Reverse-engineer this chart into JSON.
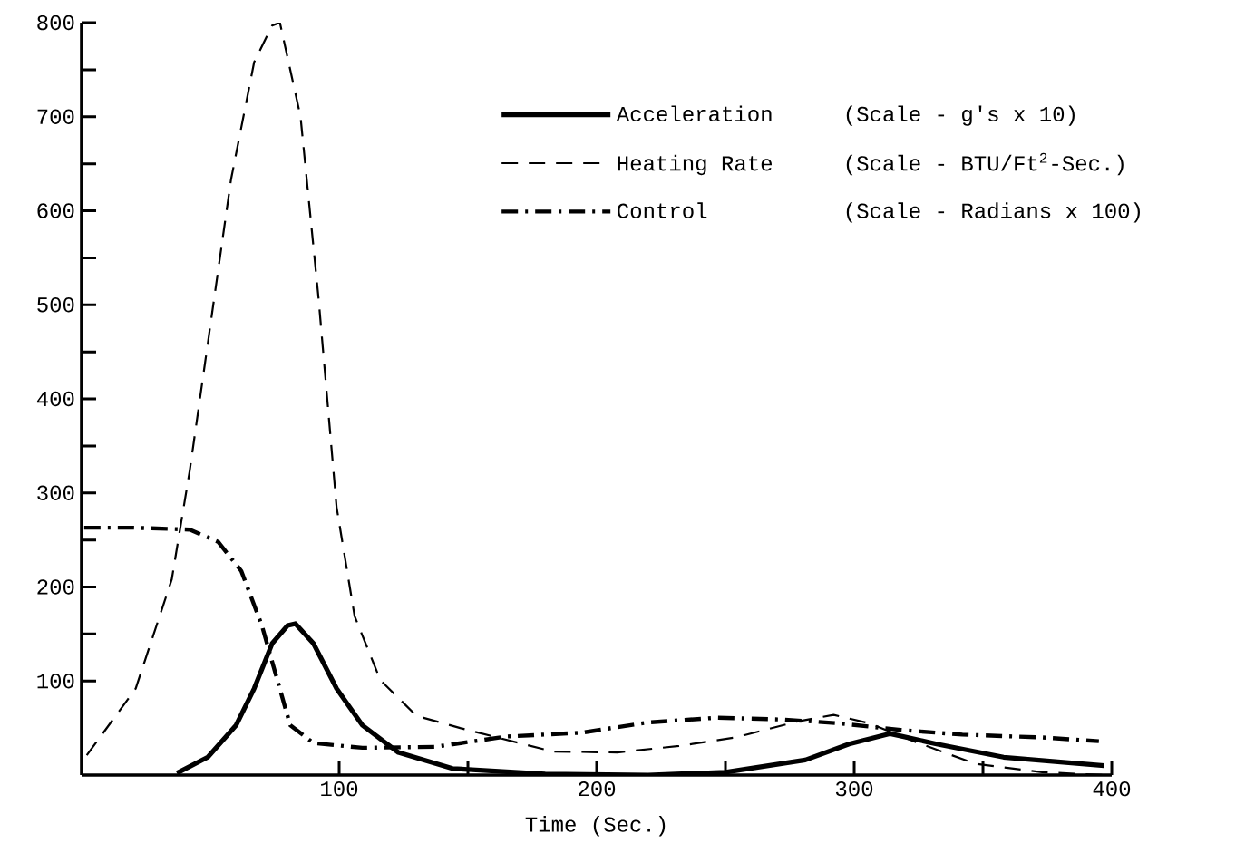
{
  "chart_data": {
    "type": "line",
    "xlabel": "Time (Sec.)",
    "xlim": [
      0,
      400
    ],
    "xticks": [
      100,
      200,
      300,
      400
    ],
    "ylim": [
      0,
      800
    ],
    "yticks": [
      100,
      200,
      300,
      400,
      500,
      600,
      700,
      800
    ],
    "legend": "top right",
    "grid": false,
    "annotations": [
      "(Scale - g's x 10)",
      "(Scale - BTU/Ft$^{2}$-Sec.)",
      "(Scale - Radians x 100)"
    ],
    "series": [
      {
        "name": "Acceleration",
        "color": "#000000",
        "line_style": "solid",
        "x": [
          37,
          49,
          60,
          67,
          74,
          80,
          83,
          90,
          99,
          109,
          123,
          144,
          180,
          220,
          250,
          281,
          298,
          314,
          332,
          358,
          397
        ],
        "values": [
          2,
          19,
          53,
          92,
          140,
          159,
          161,
          140,
          92,
          53,
          24,
          7,
          1,
          0,
          3,
          16,
          33,
          44,
          33,
          19,
          10
        ]
      },
      {
        "name": "Heating Rate",
        "color": "#000000",
        "line_style": "dashed",
        "x": [
          2,
          21,
          35,
          42,
          49,
          58,
          67,
          74,
          77,
          85,
          92,
          99,
          106,
          116,
          130,
          147,
          183,
          208,
          232,
          254,
          278,
          292,
          306,
          324,
          347,
          373,
          397
        ],
        "values": [
          21,
          92,
          208,
          324,
          459,
          633,
          758,
          797,
          800,
          700,
          507,
          285,
          169,
          101,
          63,
          50,
          25,
          24,
          31,
          40,
          57,
          64,
          55,
          35,
          12,
          3,
          0
        ]
      },
      {
        "name": "Control",
        "color": "#000000",
        "line_style": "dashdot",
        "x": [
          1,
          20,
          42,
          53,
          62,
          70,
          76,
          81,
          90,
          109,
          137,
          165,
          194,
          220,
          247,
          273,
          294,
          318,
          342,
          373,
          395
        ],
        "values": [
          263,
          263,
          261,
          248,
          217,
          159,
          101,
          53,
          34,
          29,
          30,
          41,
          45,
          56,
          61,
          59,
          55,
          48,
          43,
          40,
          36
        ]
      }
    ]
  }
}
